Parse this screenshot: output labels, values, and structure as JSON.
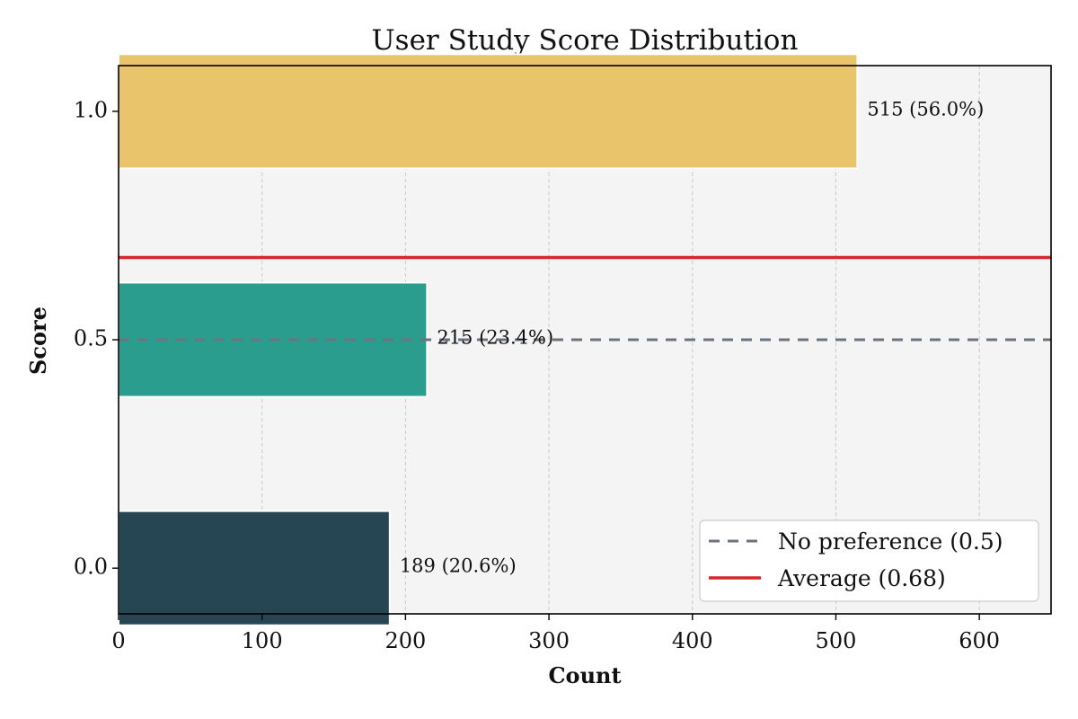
{
  "chart_data": {
    "type": "bar",
    "orientation": "horizontal",
    "title": "User Study Score Distribution",
    "xlabel": "Count",
    "ylabel": "Score",
    "categories": [
      "0.0",
      "0.5",
      "1.0"
    ],
    "category_values": [
      0.0,
      0.5,
      1.0
    ],
    "values": [
      189,
      215,
      515
    ],
    "data_labels": [
      "189 (20.6%)",
      "215 (23.4%)",
      "515 (56.0%)"
    ],
    "bar_colors": [
      "#264653",
      "#2a9d8f",
      "#e9c46a"
    ],
    "xlim": [
      0,
      650
    ],
    "ylim": [
      -0.1,
      1.1
    ],
    "xticks": [
      0,
      100,
      200,
      300,
      400,
      500,
      600
    ],
    "xtick_labels": [
      "0",
      "100",
      "200",
      "300",
      "400",
      "500",
      "600"
    ],
    "yticks": [
      0.0,
      0.5,
      1.0
    ],
    "ytick_labels": [
      "0.0",
      "0.5",
      "1.0"
    ],
    "grid": "vertical-dashed",
    "reference_lines": [
      {
        "name": "No preference (0.5)",
        "y": 0.5,
        "style": "dashed",
        "color": "#6c757d"
      },
      {
        "name": "Average (0.68)",
        "y": 0.68,
        "style": "solid",
        "color": "#d62828"
      }
    ],
    "legend": {
      "position": "lower-right",
      "entries": [
        "No preference (0.5)",
        "Average (0.68)"
      ]
    },
    "plot_background": "#f4f4f4"
  }
}
